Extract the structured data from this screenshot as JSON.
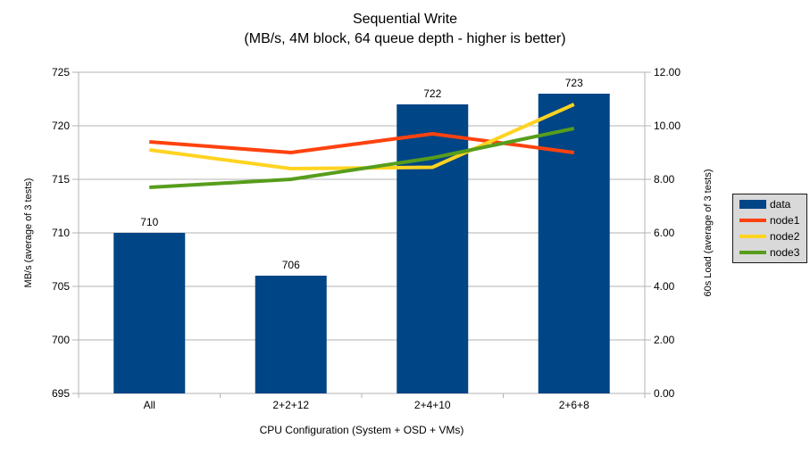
{
  "chart": {
    "title": "Sequential Write",
    "subtitle": "(MB/s, 4M block, 64 queue depth - higher is better)",
    "x_axis_title": "CPU Configuration (System + OSD + VMs)",
    "left_axis_title": "MB/s (average of 3 tests)",
    "right_axis_title": "60s Load (average of 3 tests)"
  },
  "chart_data": {
    "type": "bar+line",
    "title": "Sequential Write",
    "subtitle": "(MB/s, 4M block, 64 queue depth - higher is better)",
    "xlabel": "CPU Configuration (System + OSD + VMs)",
    "categories": [
      "All",
      "2+2+12",
      "2+4+10",
      "2+6+8"
    ],
    "series": [
      {
        "name": "data",
        "type": "bar",
        "axis": "left",
        "color": "#004586",
        "values": [
          710,
          706,
          722,
          723
        ],
        "data_labels": [
          "710",
          "706",
          "722",
          "723"
        ]
      },
      {
        "name": "node1",
        "type": "line",
        "axis": "right",
        "color": "#FF420E",
        "values": [
          9.4,
          9.0,
          9.7,
          9.0
        ]
      },
      {
        "name": "node2",
        "type": "line",
        "axis": "right",
        "color": "#FFD320",
        "values": [
          9.1,
          8.4,
          8.45,
          10.8
        ]
      },
      {
        "name": "node3",
        "type": "line",
        "axis": "right",
        "color": "#579D1C",
        "values": [
          7.7,
          8.0,
          8.8,
          9.9
        ]
      }
    ],
    "left_axis": {
      "title": "MB/s (average of 3 tests)",
      "min": 695,
      "max": 725,
      "tick_step": 5,
      "tick_labels": [
        "695",
        "700",
        "705",
        "710",
        "715",
        "720",
        "725"
      ]
    },
    "right_axis": {
      "title": "60s Load (average of 3 tests)",
      "min": 0,
      "max": 12,
      "tick_step": 2,
      "tick_labels": [
        "0.00",
        "2.00",
        "4.00",
        "6.00",
        "8.00",
        "10.00",
        "12.00"
      ]
    },
    "legend": {
      "position": "right",
      "entries": [
        "data",
        "node1",
        "node2",
        "node3"
      ]
    },
    "grid": "horizontal",
    "colors": {
      "grid": "#b3b3b3",
      "axis": "#b3b3b3",
      "text": "#000000",
      "background": "#ffffff",
      "bar": "#004586",
      "node1": "#FF420E",
      "node2": "#FFD320",
      "node3": "#579D1C",
      "legend_background": "#d9d9d9",
      "legend_border": "#1a1a1a"
    }
  }
}
